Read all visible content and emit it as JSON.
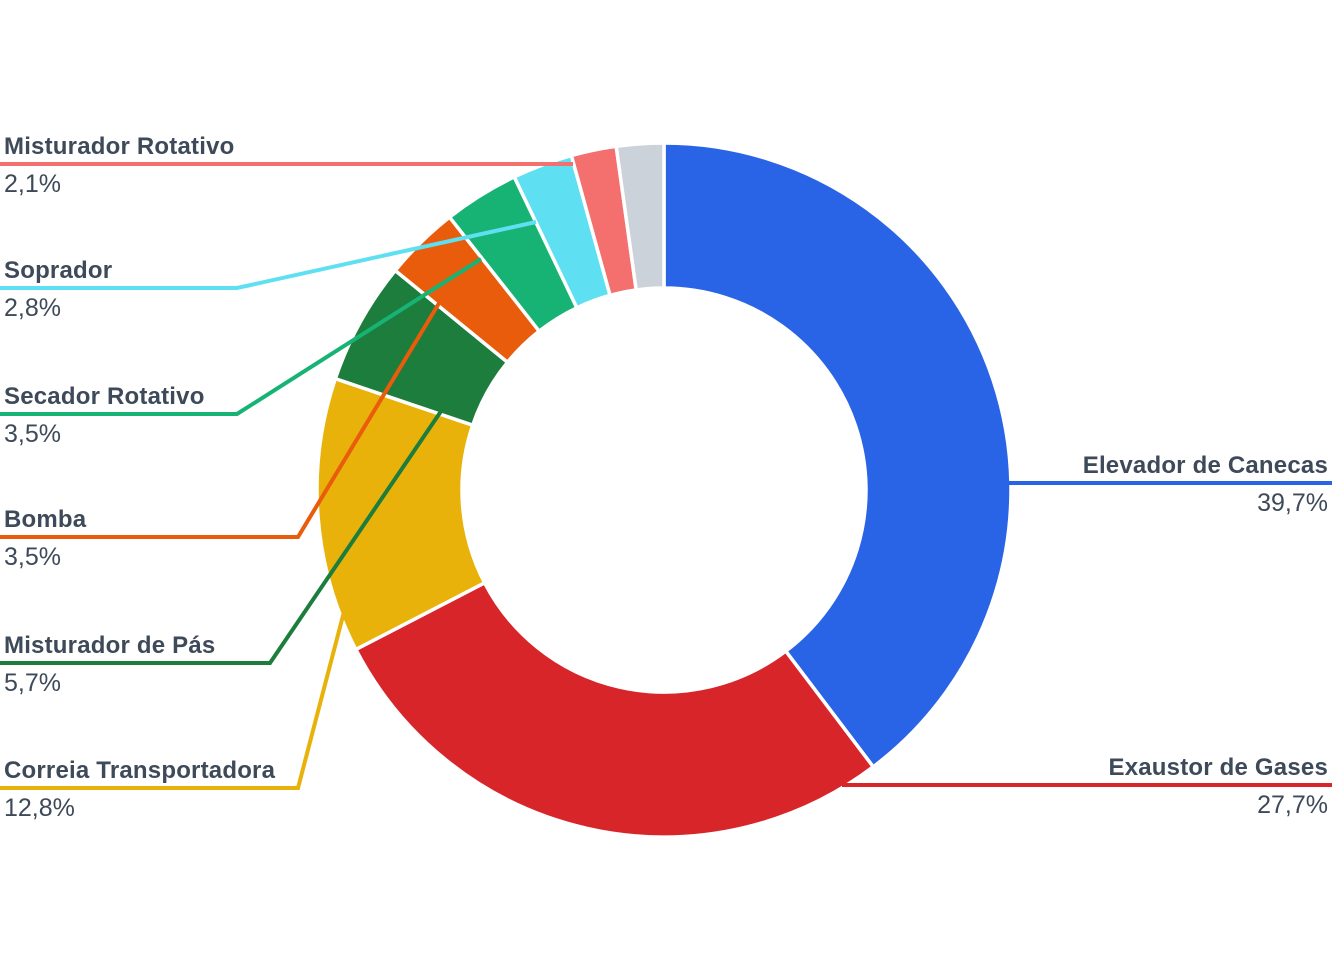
{
  "canvas": {
    "background": "#FFFFFF",
    "text_color": "#3E4A59"
  },
  "chart_data": {
    "type": "pie",
    "subtype": "donut",
    "title": "",
    "legend_position": "callout-labels",
    "value_format": "percent-comma-decimal",
    "start_angle_deg": 0,
    "direction": "clockwise",
    "segments": [
      {
        "label": "Elevador de Canecas",
        "value": 39.7,
        "display": "39,7%",
        "color": "#2A64E6",
        "side": "right"
      },
      {
        "label": "Exaustor de Gases",
        "value": 27.7,
        "display": "27,7%",
        "color": "#D7252A",
        "side": "right"
      },
      {
        "label": "Correia Transportadora",
        "value": 12.8,
        "display": "12,8%",
        "color": "#E8B20B",
        "side": "left"
      },
      {
        "label": "Misturador de Pás",
        "value": 5.7,
        "display": "5,7%",
        "color": "#1D7D3C",
        "side": "left"
      },
      {
        "label": "Bomba",
        "value": 3.5,
        "display": "3,5%",
        "color": "#E85C0C",
        "side": "left"
      },
      {
        "label": "Secador Rotativo",
        "value": 3.5,
        "display": "3,5%",
        "color": "#17B375",
        "side": "left"
      },
      {
        "label": "Soprador",
        "value": 2.8,
        "display": "2,8%",
        "color": "#5FE0F2",
        "side": "left"
      },
      {
        "label": "Misturador Rotativo",
        "value": 2.1,
        "display": "2,1%",
        "color": "#F4706E",
        "side": "left"
      },
      {
        "label": "",
        "value": 2.2,
        "display": "",
        "color": "#CCD2DA",
        "side": "none"
      }
    ]
  }
}
